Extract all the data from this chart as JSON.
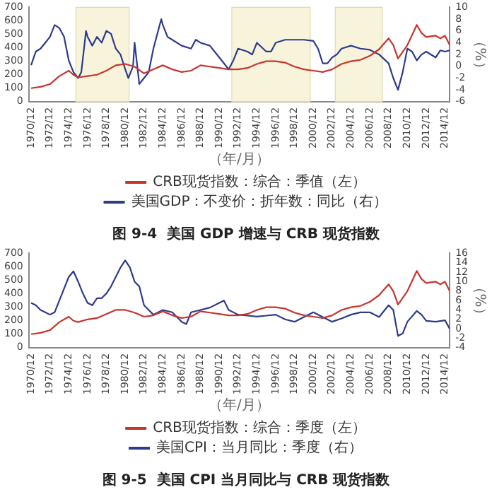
{
  "chart_data": [
    {
      "type": "line",
      "title": "图 9-4  美国 GDP 增速与 CRB 现货指数",
      "xlabel": "（年/月）",
      "y2label": "（%）",
      "legend": "bottom",
      "grid": false,
      "marker": "none",
      "line_style": "solid",
      "xlim": [
        "1970-09",
        "2015-06"
      ],
      "xticks": [
        {
          "value": "1970-12",
          "label": "1970/12"
        },
        {
          "value": "1972-12",
          "label": "1972/12"
        },
        {
          "value": "1974-12",
          "label": "1974/12"
        },
        {
          "value": "1976-12",
          "label": "1976/12"
        },
        {
          "value": "1978-12",
          "label": "1978/12"
        },
        {
          "value": "1980-12",
          "label": "1980/12"
        },
        {
          "value": "1982-12",
          "label": "1982/12"
        },
        {
          "value": "1984-12",
          "label": "1984/12"
        },
        {
          "value": "1986-12",
          "label": "1986/12"
        },
        {
          "value": "1988-12",
          "label": "1988/12"
        },
        {
          "value": "1990-12",
          "label": "1990/12"
        },
        {
          "value": "1992-12",
          "label": "1992/12"
        },
        {
          "value": "1994-12",
          "label": "1994/12"
        },
        {
          "value": "1996-12",
          "label": "1996/12"
        },
        {
          "value": "1998-12",
          "label": "1998/12"
        },
        {
          "value": "2000-12",
          "label": "2000/12"
        },
        {
          "value": "2002-12",
          "label": "2002/12"
        },
        {
          "value": "2004-12",
          "label": "2004/12"
        },
        {
          "value": "2006-12",
          "label": "2006/12"
        },
        {
          "value": "2008-12",
          "label": "2008/12"
        },
        {
          "value": "2010-12",
          "label": "2010/12"
        },
        {
          "value": "2012-12",
          "label": "2012/12"
        },
        {
          "value": "2014-12",
          "label": "2014/12"
        }
      ],
      "ylim": [
        0,
        700
      ],
      "yticks": [
        0,
        100,
        200,
        300,
        400,
        500,
        600,
        700
      ],
      "y2lim": [
        -6,
        10
      ],
      "y2ticks": [
        -6,
        -4,
        -2,
        0,
        2,
        4,
        6,
        8,
        10
      ],
      "bands": [
        {
          "axis": "x",
          "from": "1975-09",
          "to": "1981-05",
          "color": "#f8f4dc"
        },
        {
          "axis": "x",
          "from": "1992-04",
          "to": "2000-08",
          "color": "#f8f4dc"
        },
        {
          "axis": "x",
          "from": "2003-04",
          "to": "2008-04",
          "color": "#f8f4dc"
        }
      ],
      "series": [
        {
          "name": "CRB现货指数：综合：季值（左）",
          "color": "#c8342e",
          "x": [
            "1970-12",
            "1971-12",
            "1972-12",
            "1973-12",
            "1974-12",
            "1975-06",
            "1975-12",
            "1976-12",
            "1977-12",
            "1978-12",
            "1979-12",
            "1980-12",
            "1981-12",
            "1982-12",
            "1983-12",
            "1984-12",
            "1985-12",
            "1986-12",
            "1987-12",
            "1988-12",
            "1989-12",
            "1990-12",
            "1991-12",
            "1992-12",
            "1993-12",
            "1994-12",
            "1995-12",
            "1996-12",
            "1997-12",
            "1998-12",
            "1999-12",
            "2000-12",
            "2001-12",
            "2002-12",
            "2003-12",
            "2004-12",
            "2005-12",
            "2006-12",
            "2007-12",
            "2008-12",
            "2009-06",
            "2009-12",
            "2010-12",
            "2011-12",
            "2012-06",
            "2012-12",
            "2013-12",
            "2014-06",
            "2014-12",
            "2015-06"
          ],
          "values": [
            100,
            110,
            130,
            190,
            230,
            200,
            180,
            190,
            200,
            230,
            270,
            280,
            260,
            210,
            240,
            270,
            240,
            220,
            230,
            270,
            260,
            250,
            240,
            240,
            250,
            280,
            300,
            300,
            290,
            260,
            240,
            230,
            220,
            240,
            280,
            300,
            310,
            340,
            390,
            470,
            420,
            320,
            420,
            570,
            510,
            480,
            490,
            470,
            490,
            420
          ]
        },
        {
          "name": "美国GDP：不变价：折年数：同比（右）",
          "color": "#2e3a8c",
          "axis": "y2",
          "x": [
            "1970-12",
            "1971-06",
            "1971-12",
            "1972-06",
            "1972-12",
            "1973-06",
            "1973-12",
            "1974-06",
            "1974-12",
            "1975-06",
            "1975-12",
            "1976-04",
            "1976-10",
            "1976-12",
            "1977-06",
            "1977-12",
            "1978-06",
            "1978-12",
            "1979-06",
            "1979-12",
            "1980-06",
            "1980-12",
            "1981-04",
            "1981-10",
            "1981-12",
            "1982-06",
            "1982-12",
            "1983-06",
            "1983-12",
            "1984-10",
            "1984-12",
            "1985-06",
            "1985-12",
            "1986-12",
            "1987-12",
            "1988-06",
            "1988-12",
            "1989-12",
            "1990-12",
            "1991-12",
            "1992-06",
            "1992-12",
            "1993-12",
            "1994-06",
            "1994-12",
            "1995-12",
            "1996-06",
            "1996-12",
            "1997-12",
            "1998-12",
            "1999-12",
            "2000-12",
            "2001-06",
            "2001-12",
            "2002-06",
            "2002-12",
            "2003-06",
            "2003-12",
            "2004-12",
            "2005-12",
            "2006-12",
            "2007-12",
            "2008-12",
            "2009-06",
            "2009-12",
            "2010-06",
            "2010-12",
            "2011-06",
            "2011-12",
            "2012-06",
            "2012-12",
            "2013-12",
            "2014-06",
            "2014-12",
            "2015-06"
          ],
          "values": [
            0.2,
            2.5,
            3,
            4,
            5,
            7,
            6.5,
            5,
            1,
            -1,
            -2,
            -1,
            6,
            5,
            3.5,
            5,
            4,
            6,
            5.5,
            3,
            2,
            -0.5,
            -2,
            0,
            4,
            -3,
            -2,
            -1,
            3,
            8,
            7,
            5,
            4.5,
            3.5,
            3,
            4.5,
            4,
            3.5,
            1.5,
            -0.5,
            1,
            3,
            2.5,
            2,
            4,
            2.5,
            2.5,
            4,
            4.5,
            4.5,
            4.5,
            4.3,
            3,
            0.5,
            0.5,
            1.5,
            2,
            3,
            3.5,
            3,
            2.8,
            2,
            0.5,
            -2,
            -4,
            -1,
            3,
            2.5,
            1,
            2,
            2.5,
            1.5,
            2.7,
            2.5,
            2.7
          ]
        }
      ]
    },
    {
      "type": "line",
      "title": "图 9-5  美国 CPI 当月同比与 CRB 现货指数",
      "xlabel": "（年/月）",
      "y2label": "（%）",
      "legend": "bottom",
      "grid": false,
      "marker": "none",
      "line_style": "solid",
      "xlim": [
        "1970-09",
        "2015-06"
      ],
      "xticks": [
        {
          "value": "1970-12",
          "label": "1970/12"
        },
        {
          "value": "1972-12",
          "label": "1972/12"
        },
        {
          "value": "1974-12",
          "label": "1974/12"
        },
        {
          "value": "1976-12",
          "label": "1976/12"
        },
        {
          "value": "1978-12",
          "label": "1978/12"
        },
        {
          "value": "1980-12",
          "label": "1980/12"
        },
        {
          "value": "1982-12",
          "label": "1982/12"
        },
        {
          "value": "1984-12",
          "label": "1984/12"
        },
        {
          "value": "1986-12",
          "label": "1986/12"
        },
        {
          "value": "1988-12",
          "label": "1988/12"
        },
        {
          "value": "1990-12",
          "label": "1990/12"
        },
        {
          "value": "1992-12",
          "label": "1992/12"
        },
        {
          "value": "1994-12",
          "label": "1994/12"
        },
        {
          "value": "1996-12",
          "label": "1996/12"
        },
        {
          "value": "1998-12",
          "label": "1998/12"
        },
        {
          "value": "2000-12",
          "label": "2000/12"
        },
        {
          "value": "2002-12",
          "label": "2002/12"
        },
        {
          "value": "2004-12",
          "label": "2004/12"
        },
        {
          "value": "2006-12",
          "label": "2006/12"
        },
        {
          "value": "2008-12",
          "label": "2008/12"
        },
        {
          "value": "2010-12",
          "label": "2010/12"
        },
        {
          "value": "2012-12",
          "label": "2012/12"
        },
        {
          "value": "2014-12",
          "label": "2014/12"
        }
      ],
      "ylim": [
        0,
        700
      ],
      "yticks": [
        0,
        100,
        200,
        300,
        400,
        500,
        600,
        700
      ],
      "y2lim": [
        -4,
        16
      ],
      "y2ticks": [
        -4,
        -2,
        0,
        2,
        4,
        6,
        8,
        10,
        12,
        14,
        16
      ],
      "series": [
        {
          "name": "CRB现货指数：综合：季度（左）",
          "color": "#c8342e",
          "x": [
            "1970-12",
            "1971-12",
            "1972-12",
            "1973-12",
            "1974-12",
            "1975-06",
            "1975-12",
            "1976-12",
            "1977-12",
            "1978-12",
            "1979-12",
            "1980-12",
            "1981-12",
            "1982-12",
            "1983-12",
            "1984-12",
            "1985-12",
            "1986-12",
            "1987-12",
            "1988-12",
            "1989-12",
            "1990-12",
            "1991-12",
            "1992-12",
            "1993-12",
            "1994-12",
            "1995-12",
            "1996-12",
            "1997-12",
            "1998-12",
            "1999-12",
            "2000-12",
            "2001-12",
            "2002-12",
            "2003-12",
            "2004-12",
            "2005-12",
            "2006-12",
            "2007-12",
            "2008-12",
            "2009-06",
            "2009-12",
            "2010-12",
            "2011-12",
            "2012-06",
            "2012-12",
            "2013-12",
            "2014-06",
            "2014-12",
            "2015-06"
          ],
          "values": [
            100,
            110,
            130,
            190,
            230,
            200,
            190,
            210,
            220,
            250,
            280,
            280,
            260,
            230,
            240,
            270,
            240,
            220,
            230,
            270,
            260,
            250,
            240,
            240,
            250,
            280,
            300,
            300,
            290,
            260,
            240,
            230,
            220,
            240,
            280,
            300,
            310,
            340,
            390,
            470,
            420,
            320,
            420,
            570,
            510,
            480,
            490,
            470,
            490,
            420
          ]
        },
        {
          "name": "美国CPI：当月同比：季度（右）",
          "color": "#2e3a8c",
          "axis": "y2",
          "x": [
            "1970-12",
            "1971-06",
            "1971-12",
            "1972-06",
            "1972-12",
            "1973-06",
            "1973-12",
            "1974-06",
            "1974-12",
            "1975-06",
            "1975-12",
            "1976-06",
            "1976-12",
            "1977-06",
            "1977-12",
            "1978-06",
            "1978-12",
            "1979-06",
            "1979-12",
            "1980-06",
            "1980-12",
            "1981-06",
            "1981-12",
            "1982-06",
            "1982-12",
            "1983-06",
            "1983-12",
            "1984-12",
            "1985-12",
            "1986-12",
            "1987-06",
            "1987-12",
            "1988-12",
            "1989-12",
            "1990-12",
            "1991-06",
            "1991-12",
            "1992-12",
            "1993-12",
            "1994-12",
            "1995-12",
            "1996-12",
            "1997-12",
            "1998-12",
            "1999-12",
            "2000-12",
            "2001-12",
            "2002-12",
            "2003-12",
            "2004-12",
            "2005-12",
            "2006-12",
            "2007-12",
            "2008-12",
            "2009-06",
            "2009-12",
            "2010-06",
            "2010-12",
            "2011-12",
            "2012-06",
            "2012-12",
            "2013-12",
            "2014-12",
            "2015-06"
          ],
          "values": [
            5.5,
            5,
            4,
            3.5,
            3,
            3.5,
            6,
            8.5,
            11,
            12.2,
            10,
            7.5,
            5.5,
            5,
            6.5,
            6.5,
            7.5,
            9,
            11,
            13,
            14.5,
            13,
            10,
            9,
            5,
            4,
            3,
            4,
            3.5,
            1.5,
            1,
            3.5,
            4,
            4.5,
            5.5,
            6,
            4,
            3,
            2.8,
            2.6,
            2.8,
            3,
            2,
            1.5,
            2.5,
            3.5,
            2.5,
            1.5,
            2.2,
            3,
            3.5,
            3.5,
            2.5,
            5,
            4,
            -1.5,
            -1,
            1.5,
            3.8,
            3,
            1.7,
            1.5,
            1.8,
            0
          ]
        }
      ]
    }
  ]
}
